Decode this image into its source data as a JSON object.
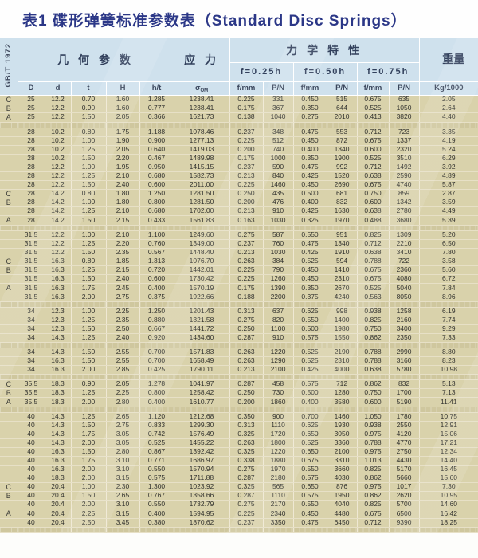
{
  "page": {
    "title": "表1 碟形弹簧标准参数表（Standard Disc Springs）"
  },
  "table": {
    "standard": "GB/T 1972",
    "groups": {
      "geometry": "几 何 参 数",
      "stress": "应 力",
      "mechanical": "力 学 特 性",
      "weight": "重量"
    },
    "deflections": [
      "f=0.25h",
      "f=0.50h",
      "f=0.75h"
    ],
    "columns": {
      "D": "D",
      "d": "d",
      "t": "t",
      "H": "H",
      "ht": "h/t",
      "sigma_base": "σ",
      "sigma_sub": "OM",
      "f": "f/mm",
      "p": "P/N",
      "kg": "Kg/1000"
    },
    "series_labels": [
      "C",
      "B",
      "A"
    ],
    "rows": [
      {
        "label": "C",
        "c": [
          "25",
          "12.2",
          "0.70",
          "1.60",
          "1.285",
          "1238.41",
          "0.225",
          "331",
          "0.450",
          "515",
          "0.675",
          "635",
          "2.05"
        ]
      },
      {
        "label": "B",
        "c": [
          "25",
          "12.2",
          "0.90",
          "1.60",
          "0.777",
          "1238.41",
          "0.175",
          "367",
          "0.350",
          "644",
          "0.525",
          "1050",
          "2.64"
        ]
      },
      {
        "label": "A",
        "c": [
          "25",
          "12.2",
          "1.50",
          "2.05",
          "0.366",
          "1621.73",
          "0.138",
          "1040",
          "0.275",
          "2010",
          "0.413",
          "3820",
          "4.40"
        ]
      },
      {
        "gap": true
      },
      {
        "label": "",
        "c": [
          "28",
          "10.2",
          "0.80",
          "1.75",
          "1.188",
          "1078.46",
          "0.237",
          "348",
          "0.475",
          "553",
          "0.712",
          "723",
          "3.35"
        ]
      },
      {
        "label": "",
        "c": [
          "28",
          "10.2",
          "1.00",
          "1.90",
          "0.900",
          "1277.13",
          "0.225",
          "512",
          "0.450",
          "872",
          "0.675",
          "1337",
          "4.19"
        ]
      },
      {
        "label": "",
        "c": [
          "28",
          "10.2",
          "1.25",
          "2.05",
          "0.640",
          "1419.03",
          "0.200",
          "740",
          "0.400",
          "1340",
          "0.600",
          "2320",
          "5.24"
        ]
      },
      {
        "label": "",
        "c": [
          "28",
          "10.2",
          "1.50",
          "2.20",
          "0.467",
          "1489.98",
          "0.175",
          "1000",
          "0.350",
          "1900",
          "0.525",
          "3510",
          "6.29"
        ]
      },
      {
        "label": "",
        "c": [
          "28",
          "12.2",
          "1.00",
          "1.95",
          "0.950",
          "1415.15",
          "0.237",
          "590",
          "0.475",
          "992",
          "0.712",
          "1492",
          "3.92"
        ]
      },
      {
        "label": "",
        "c": [
          "28",
          "12.2",
          "1.25",
          "2.10",
          "0.680",
          "1582.73",
          "0.213",
          "840",
          "0.425",
          "1520",
          "0.638",
          "2590",
          "4.89"
        ]
      },
      {
        "label": "",
        "c": [
          "28",
          "12.2",
          "1.50",
          "2.40",
          "0.600",
          "2011.00",
          "0.225",
          "1460",
          "0.450",
          "2690",
          "0.675",
          "4740",
          "5.87"
        ]
      },
      {
        "label": "C",
        "c": [
          "28",
          "14.2",
          "0.80",
          "1.80",
          "1.250",
          "1281.50",
          "0.250",
          "435",
          "0.500",
          "681",
          "0.750",
          "859",
          "2.87"
        ]
      },
      {
        "label": "B",
        "c": [
          "28",
          "14.2",
          "1.00",
          "1.80",
          "0.800",
          "1281.50",
          "0.200",
          "476",
          "0.400",
          "832",
          "0.600",
          "1342",
          "3.59"
        ]
      },
      {
        "label": "",
        "c": [
          "28",
          "14.2",
          "1.25",
          "2.10",
          "0.680",
          "1702.00",
          "0.213",
          "910",
          "0.425",
          "1630",
          "0.638",
          "2780",
          "4.49"
        ]
      },
      {
        "label": "A",
        "c": [
          "28",
          "14.2",
          "1.50",
          "2.15",
          "0.433",
          "1561.83",
          "0.163",
          "1030",
          "0.325",
          "1970",
          "0.488",
          "3680",
          "5.39"
        ]
      },
      {
        "gap": true
      },
      {
        "label": "",
        "c": [
          "31.5",
          "12.2",
          "1.00",
          "2.10",
          "1.100",
          "1249.60",
          "0.275",
          "587",
          "0.550",
          "951",
          "0.825",
          "1309",
          "5.20"
        ]
      },
      {
        "label": "",
        "c": [
          "31.5",
          "12.2",
          "1.25",
          "2.20",
          "0.760",
          "1349.00",
          "0.237",
          "760",
          "0.475",
          "1340",
          "0.712",
          "2210",
          "6.50"
        ]
      },
      {
        "label": "",
        "c": [
          "31.5",
          "12.2",
          "1.50",
          "2.35",
          "0.567",
          "1448.40",
          "0.213",
          "1030",
          "0.425",
          "1910",
          "0.638",
          "3410",
          "7.80"
        ]
      },
      {
        "label": "C",
        "c": [
          "31.5",
          "16.3",
          "0.80",
          "1.85",
          "1.313",
          "1076.70",
          "0.263",
          "384",
          "0.525",
          "594",
          "0.788",
          "722",
          "3.58"
        ]
      },
      {
        "label": "B",
        "c": [
          "31.5",
          "16.3",
          "1.25",
          "2.15",
          "0.720",
          "1442.01",
          "0.225",
          "790",
          "0.450",
          "1410",
          "0.675",
          "2360",
          "5.60"
        ]
      },
      {
        "label": "",
        "c": [
          "31.5",
          "16.3",
          "1.50",
          "2.40",
          "0.600",
          "1730.42",
          "0.225",
          "1260",
          "0.450",
          "2310",
          "0.675",
          "4080",
          "6.72"
        ]
      },
      {
        "label": "A",
        "c": [
          "31.5",
          "16.3",
          "1.75",
          "2.45",
          "0.400",
          "1570.19",
          "0.175",
          "1390",
          "0.350",
          "2670",
          "0.525",
          "5040",
          "7.84"
        ]
      },
      {
        "label": "",
        "c": [
          "31.5",
          "16.3",
          "2.00",
          "2.75",
          "0.375",
          "1922.66",
          "0.188",
          "2200",
          "0.375",
          "4240",
          "0.563",
          "8050",
          "8.96"
        ]
      },
      {
        "gap": true
      },
      {
        "label": "",
        "c": [
          "34",
          "12.3",
          "1.00",
          "2.25",
          "1.250",
          "1201.43",
          "0.313",
          "637",
          "0.625",
          "998",
          "0.938",
          "1258",
          "6.19"
        ]
      },
      {
        "label": "",
        "c": [
          "34",
          "12.3",
          "1.25",
          "2.35",
          "0.880",
          "1321.58",
          "0.275",
          "820",
          "0.550",
          "1400",
          "0.825",
          "2160",
          "7.74"
        ]
      },
      {
        "label": "",
        "c": [
          "34",
          "12.3",
          "1.50",
          "2.50",
          "0.667",
          "1441.72",
          "0.250",
          "1100",
          "0.500",
          "1980",
          "0.750",
          "3400",
          "9.29"
        ]
      },
      {
        "label": "",
        "c": [
          "34",
          "14.3",
          "1.25",
          "2.40",
          "0.920",
          "1434.60",
          "0.287",
          "910",
          "0.575",
          "1550",
          "0.862",
          "2350",
          "7.33"
        ]
      },
      {
        "gap": true
      },
      {
        "label": "",
        "c": [
          "34",
          "14.3",
          "1.50",
          "2.55",
          "0.700",
          "1571.83",
          "0.263",
          "1220",
          "0.525",
          "2190",
          "0.788",
          "2990",
          "8.80"
        ]
      },
      {
        "label": "",
        "c": [
          "34",
          "16.3",
          "1.50",
          "2.55",
          "0.700",
          "1658.49",
          "0.263",
          "1290",
          "0.525",
          "2310",
          "0.788",
          "3160",
          "8.23"
        ]
      },
      {
        "label": "",
        "c": [
          "34",
          "16.3",
          "2.00",
          "2.85",
          "0.425",
          "1790.11",
          "0.213",
          "2100",
          "0.425",
          "4000",
          "0.638",
          "5780",
          "10.98"
        ]
      },
      {
        "gap": true
      },
      {
        "label": "C",
        "c": [
          "35.5",
          "18.3",
          "0.90",
          "2.05",
          "1.278",
          "1041.97",
          "0.287",
          "458",
          "0.575",
          "712",
          "0.862",
          "832",
          "5.13"
        ]
      },
      {
        "label": "B",
        "c": [
          "35.5",
          "18.3",
          "1.25",
          "2.25",
          "0.800",
          "1258.42",
          "0.250",
          "730",
          "0.500",
          "1280",
          "0.750",
          "1700",
          "7.13"
        ]
      },
      {
        "label": "A",
        "c": [
          "35.5",
          "18.3",
          "2.00",
          "2.80",
          "0.400",
          "1610.77",
          "0.200",
          "1860",
          "0.400",
          "3580",
          "0.600",
          "5190",
          "11.41"
        ]
      },
      {
        "gap": true
      },
      {
        "label": "",
        "c": [
          "40",
          "14.3",
          "1.25",
          "2.65",
          "1.120",
          "1212.68",
          "0.350",
          "900",
          "0.700",
          "1460",
          "1.050",
          "1780",
          "10.75"
        ]
      },
      {
        "label": "",
        "c": [
          "40",
          "14.3",
          "1.50",
          "2.75",
          "0.833",
          "1299.30",
          "0.313",
          "1110",
          "0.625",
          "1930",
          "0.938",
          "2550",
          "12.91"
        ]
      },
      {
        "label": "",
        "c": [
          "40",
          "14.3",
          "1.75",
          "3.05",
          "0.742",
          "1576.49",
          "0.325",
          "1720",
          "0.650",
          "3050",
          "0.975",
          "4120",
          "15.06"
        ]
      },
      {
        "label": "",
        "c": [
          "40",
          "14.3",
          "2.00",
          "3.05",
          "0.525",
          "1455.22",
          "0.263",
          "1800",
          "0.525",
          "3360",
          "0.788",
          "4770",
          "17.21"
        ]
      },
      {
        "label": "",
        "c": [
          "40",
          "16.3",
          "1.50",
          "2.80",
          "0.867",
          "1392.42",
          "0.325",
          "1220",
          "0.650",
          "2100",
          "0.975",
          "2750",
          "12.34"
        ]
      },
      {
        "label": "",
        "c": [
          "40",
          "16.3",
          "1.75",
          "3.10",
          "0.771",
          "1686.97",
          "0.338",
          "1880",
          "0.675",
          "3310",
          "1.013",
          "4430",
          "14.40"
        ]
      },
      {
        "label": "",
        "c": [
          "40",
          "16.3",
          "2.00",
          "3.10",
          "0.550",
          "1570.94",
          "0.275",
          "1970",
          "0.550",
          "3660",
          "0.825",
          "5170",
          "16.45"
        ]
      },
      {
        "label": "",
        "c": [
          "40",
          "18.3",
          "2.00",
          "3.15",
          "0.575",
          "1711.88",
          "0.287",
          "2180",
          "0.575",
          "4030",
          "0.862",
          "5660",
          "15.60"
        ]
      },
      {
        "label": "C",
        "c": [
          "40",
          "20.4",
          "1.00",
          "2.30",
          "1.300",
          "1023.92",
          "0.325",
          "565",
          "0.650",
          "876",
          "0.975",
          "1017",
          "7.30"
        ]
      },
      {
        "label": "B",
        "c": [
          "40",
          "20.4",
          "1.50",
          "2.65",
          "0.767",
          "1358.66",
          "0.287",
          "1110",
          "0.575",
          "1950",
          "0.862",
          "2620",
          "10.95"
        ]
      },
      {
        "label": "",
        "c": [
          "40",
          "20.4",
          "2.00",
          "3.10",
          "0.550",
          "1732.79",
          "0.275",
          "2170",
          "0.550",
          "4040",
          "0.825",
          "5700",
          "14.60"
        ]
      },
      {
        "label": "A",
        "c": [
          "40",
          "20.4",
          "2.25",
          "3.15",
          "0.400",
          "1594.95",
          "0.225",
          "2340",
          "0.450",
          "4480",
          "0.675",
          "6500",
          "16.42"
        ]
      },
      {
        "label": "",
        "c": [
          "40",
          "20.4",
          "2.50",
          "3.45",
          "0.380",
          "1870.62",
          "0.237",
          "3350",
          "0.475",
          "6450",
          "0.712",
          "9390",
          "18.25"
        ]
      },
      {
        "gap": true
      }
    ]
  },
  "colors": {
    "title_text": "#2b3787",
    "header_bg": "#cfe1ed",
    "header_text": "#32405c",
    "row_bg": "#d9d2ab",
    "gap_bg": "#cfc79e",
    "gridline": "#ffffff"
  }
}
